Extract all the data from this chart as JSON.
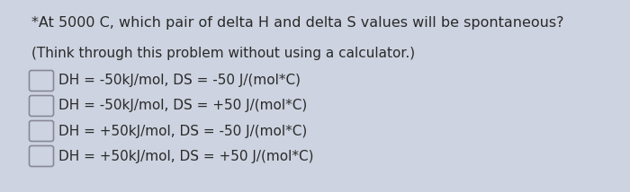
{
  "background_color": "#cdd3e0",
  "title_line": "*At 5000 C, which pair of delta H and delta S values will be spontaneous?",
  "subtitle_line": "(Think through this problem without using a calculator.)",
  "options": [
    "DH = -50kJ/mol, DS = -50 J/(mol*C)",
    "DH = -50kJ/mol, DS = +50 J/(mol*C)",
    "DH = +50kJ/mol, DS = -50 J/(mol*C)",
    "DH = +50kJ/mol, DS = +50 J/(mol*C)"
  ],
  "text_color": "#2a2a2a",
  "font_size_title": 11.5,
  "font_size_subtitle": 11.0,
  "font_size_options": 11.0,
  "checkbox_edge_color": "#888899",
  "checkbox_face_color": "#cdd3e0"
}
